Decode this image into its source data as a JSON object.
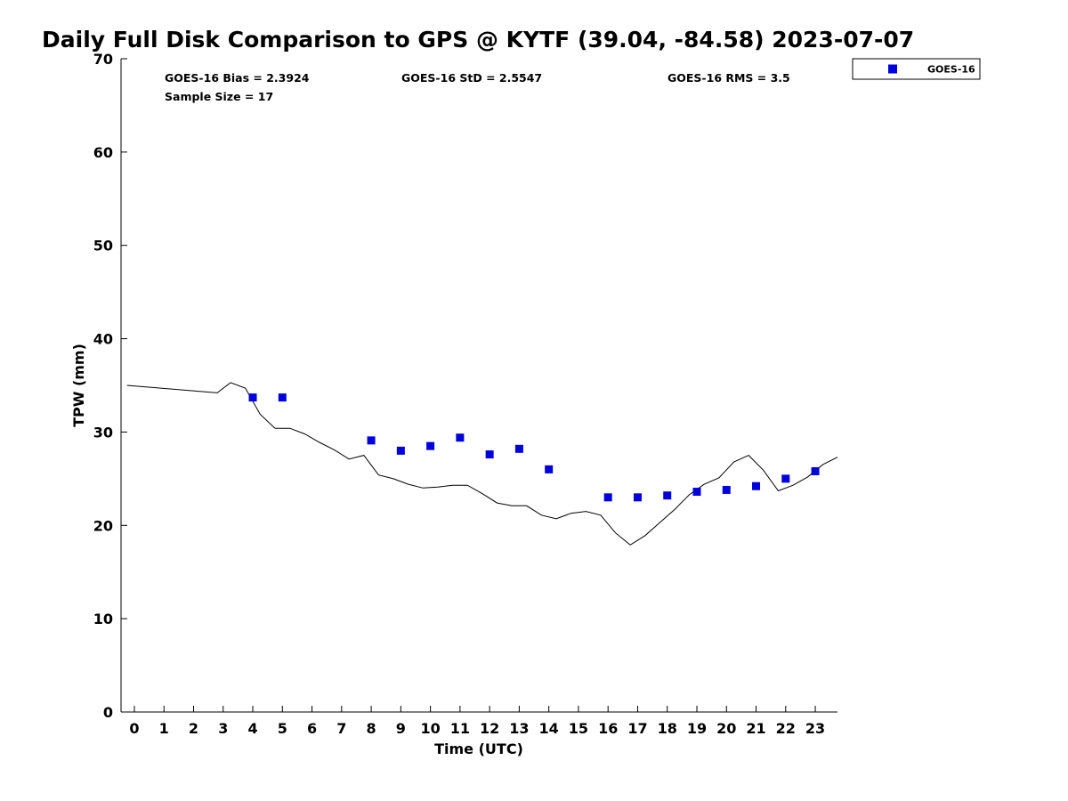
{
  "chart_data": {
    "type": "scatter",
    "title": "Daily Full Disk Comparison to GPS @ KYTF (39.04, -84.58) 2023-07-07",
    "xlabel": "Time (UTC)",
    "ylabel": "TPW (mm)",
    "xlim": [
      -0.45,
      23.75
    ],
    "ylim": [
      0,
      70
    ],
    "xticks": [
      0,
      1,
      2,
      3,
      4,
      5,
      6,
      7,
      8,
      9,
      10,
      11,
      12,
      13,
      14,
      15,
      16,
      17,
      18,
      19,
      20,
      21,
      22,
      23
    ],
    "yticks": [
      0,
      10,
      20,
      30,
      40,
      50,
      60,
      70
    ],
    "grid": false,
    "legend": {
      "position": "top-right",
      "entries": [
        "GOES-16"
      ]
    },
    "stats": {
      "bias": "GOES-16 Bias = 2.3924",
      "std": "GOES-16 StD = 2.5547",
      "rms": "GOES-16 RMS = 3.5",
      "sample": "Sample Size = 17"
    },
    "series": [
      {
        "name": "GOES-16",
        "kind": "scatter",
        "color": "#0000dd",
        "marker": "square",
        "points": [
          [
            4,
            33.7
          ],
          [
            5,
            33.7
          ],
          [
            8,
            29.1
          ],
          [
            9,
            28.0
          ],
          [
            10,
            28.5
          ],
          [
            11,
            29.4
          ],
          [
            12,
            27.6
          ],
          [
            13,
            28.2
          ],
          [
            14,
            26.0
          ],
          [
            16,
            23.0
          ],
          [
            17,
            23.0
          ],
          [
            18,
            23.2
          ],
          [
            19,
            23.6
          ],
          [
            20,
            23.8
          ],
          [
            21,
            24.2
          ],
          [
            22,
            25.0
          ],
          [
            23,
            25.8
          ]
        ]
      },
      {
        "kind": "line",
        "color": "#000000",
        "points": [
          [
            -0.25,
            35.0
          ],
          [
            2.8,
            34.2
          ],
          [
            3.25,
            35.3
          ],
          [
            3.75,
            34.7
          ],
          [
            4.25,
            31.9
          ],
          [
            4.75,
            30.4
          ],
          [
            5.25,
            30.4
          ],
          [
            5.75,
            29.8
          ],
          [
            6.25,
            28.9
          ],
          [
            6.75,
            28.1
          ],
          [
            7.25,
            27.1
          ],
          [
            7.75,
            27.5
          ],
          [
            8.25,
            25.4
          ],
          [
            8.75,
            25.0
          ],
          [
            9.25,
            24.4
          ],
          [
            9.75,
            24.0
          ],
          [
            10.25,
            24.1
          ],
          [
            10.75,
            24.3
          ],
          [
            11.25,
            24.3
          ],
          [
            11.75,
            23.4
          ],
          [
            12.25,
            22.4
          ],
          [
            12.75,
            22.1
          ],
          [
            13.25,
            22.1
          ],
          [
            13.75,
            21.1
          ],
          [
            14.25,
            20.7
          ],
          [
            14.75,
            21.3
          ],
          [
            15.25,
            21.5
          ],
          [
            15.75,
            21.1
          ],
          [
            16.25,
            19.2
          ],
          [
            16.75,
            17.9
          ],
          [
            17.25,
            18.9
          ],
          [
            17.75,
            20.3
          ],
          [
            18.25,
            21.7
          ],
          [
            18.75,
            23.3
          ],
          [
            19.25,
            24.4
          ],
          [
            19.75,
            25.1
          ],
          [
            20.25,
            26.8
          ],
          [
            20.75,
            27.5
          ],
          [
            21.25,
            25.9
          ],
          [
            21.75,
            23.7
          ],
          [
            22.25,
            24.3
          ],
          [
            22.75,
            25.2
          ],
          [
            23.25,
            26.5
          ],
          [
            23.75,
            27.3
          ]
        ]
      }
    ]
  }
}
